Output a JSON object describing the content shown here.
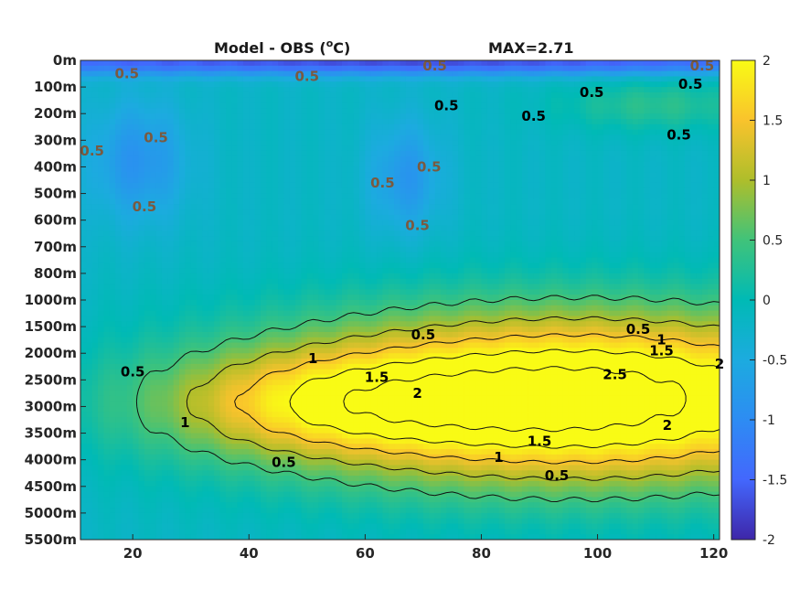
{
  "chart_data": {
    "type": "heatmap",
    "title": "Model - OBS (",
    "title_unit_sup": "o",
    "title_unit_tail": "C)",
    "max_label": "MAX=2.71",
    "colormap": "parula",
    "x": {
      "ticks": [
        20,
        40,
        60,
        80,
        100,
        120
      ],
      "tick_labels": [
        "20",
        "40",
        "60",
        "80",
        "100",
        "120"
      ],
      "range": [
        11,
        121
      ]
    },
    "y": {
      "tick_labels": [
        "0m",
        "100m",
        "200m",
        "300m",
        "400m",
        "500m",
        "600m",
        "700m",
        "800m",
        "1000m",
        "1500m",
        "2000m",
        "2500m",
        "3000m",
        "3500m",
        "4000m",
        "4500m",
        "5000m",
        "5500m"
      ],
      "level_range": [
        0,
        18
      ],
      "direction": "down"
    },
    "colorbar": {
      "range": [
        -2,
        2
      ],
      "ticks": [
        "2",
        "1.5",
        "1",
        "0.5",
        "0",
        "-0.5",
        "-1",
        "-1.5",
        "-2"
      ]
    },
    "field_features": [
      {
        "kind": "deep-warm-core",
        "x": 97,
        "level": 12.7,
        "sx": 38,
        "sy": 2.2,
        "amp": 3.0
      },
      {
        "kind": "deep-warm-tail",
        "x": 52,
        "level": 12.9,
        "sx": 20,
        "sy": 1.3,
        "amp": 1.0
      },
      {
        "kind": "cold-patch",
        "x": 21,
        "level": 3.8,
        "sx": 6,
        "sy": 1.6,
        "amp": -0.7
      },
      {
        "kind": "cold-patch",
        "x": 67,
        "level": 4.4,
        "sx": 4.5,
        "sy": 1.5,
        "amp": -0.65
      },
      {
        "kind": "surface-cold",
        "x": 66,
        "level": 0.05,
        "sx": 80,
        "sy": 0.35,
        "amp": -1.5
      },
      {
        "kind": "shallow-warm",
        "x": 110,
        "level": 1.7,
        "sx": 12,
        "sy": 0.7,
        "amp": 0.5
      }
    ],
    "contour_labels": [
      {
        "text": "0.5",
        "x": 70,
        "level": 10.3,
        "color": "black"
      },
      {
        "text": "0.5",
        "x": 107,
        "level": 10.1,
        "color": "black"
      },
      {
        "text": "0.5",
        "x": 20,
        "level": 11.7,
        "color": "black"
      },
      {
        "text": "1",
        "x": 51,
        "level": 11.2,
        "color": "black"
      },
      {
        "text": "1",
        "x": 111,
        "level": 10.5,
        "color": "black"
      },
      {
        "text": "1.5",
        "x": 62,
        "level": 11.9,
        "color": "black"
      },
      {
        "text": "1.5",
        "x": 111,
        "level": 10.9,
        "color": "black"
      },
      {
        "text": "2",
        "x": 121,
        "level": 11.4,
        "color": "black"
      },
      {
        "text": "2",
        "x": 69,
        "level": 12.5,
        "color": "black"
      },
      {
        "text": "2.5",
        "x": 103,
        "level": 11.8,
        "color": "black"
      },
      {
        "text": "2",
        "x": 112,
        "level": 13.7,
        "color": "black"
      },
      {
        "text": "1",
        "x": 29,
        "level": 13.6,
        "color": "black"
      },
      {
        "text": "1.5",
        "x": 90,
        "level": 14.3,
        "color": "black"
      },
      {
        "text": "1",
        "x": 83,
        "level": 14.9,
        "color": "black"
      },
      {
        "text": "0.5",
        "x": 46,
        "level": 15.1,
        "color": "black"
      },
      {
        "text": "0.5",
        "x": 93,
        "level": 15.6,
        "color": "black"
      },
      {
        "text": "0.5",
        "x": 116,
        "level": 0.9,
        "color": "black"
      },
      {
        "text": "0.5",
        "x": 74,
        "level": 1.7,
        "color": "black"
      },
      {
        "text": "0.5",
        "x": 89,
        "level": 2.1,
        "color": "black"
      },
      {
        "text": "0.5",
        "x": 99,
        "level": 1.2,
        "color": "black"
      },
      {
        "text": "0.5",
        "x": 114,
        "level": 2.8,
        "color": "black"
      },
      {
        "text": "0.5",
        "x": 24,
        "level": 2.9,
        "color": "#7a5a40"
      },
      {
        "text": "0.5",
        "x": 13,
        "level": 3.4,
        "color": "#7a5a40"
      },
      {
        "text": "0.5",
        "x": 22,
        "level": 5.5,
        "color": "#7a5a40"
      },
      {
        "text": "0.5",
        "x": 71,
        "level": 4.0,
        "color": "#7a5a40"
      },
      {
        "text": "0.5",
        "x": 63,
        "level": 4.6,
        "color": "#7a5a40"
      },
      {
        "text": "0.5",
        "x": 69,
        "level": 6.2,
        "color": "#7a5a40"
      },
      {
        "text": "0.5",
        "x": 19,
        "level": 0.5,
        "color": "#7a5a40"
      },
      {
        "text": "0.5",
        "x": 50,
        "level": 0.6,
        "color": "#7a5a40"
      },
      {
        "text": "0.5",
        "x": 72,
        "level": 0.2,
        "color": "#7a5a40"
      },
      {
        "text": "0.5",
        "x": 118,
        "level": 0.2,
        "color": "#7a5a40"
      }
    ]
  }
}
